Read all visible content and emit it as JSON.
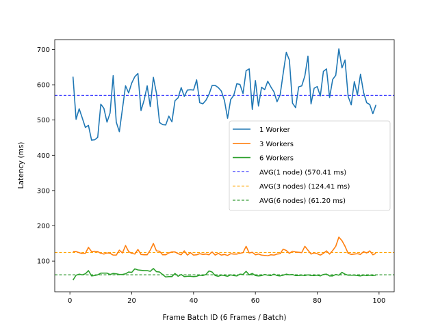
{
  "chart_data": {
    "type": "line",
    "title": "",
    "xlabel": "Frame Batch ID (6 Frames / Batch)",
    "ylabel": "Latency (ms)",
    "xlim": [
      -4.9,
      104.9
    ],
    "ylim": [
      13,
      728
    ],
    "xticks": [
      0,
      20,
      40,
      60,
      80,
      100
    ],
    "yticks": [
      100,
      200,
      300,
      400,
      500,
      600,
      700
    ],
    "grid": false,
    "legend_position": "center-right",
    "series": [
      {
        "name": "1 Worker",
        "color": "#1f77b4",
        "style": "solid",
        "x": [
          1,
          2,
          3,
          4,
          5,
          6,
          7,
          8,
          9,
          10,
          11,
          12,
          13,
          14,
          15,
          16,
          17,
          18,
          19,
          20,
          21,
          22,
          23,
          24,
          25,
          26,
          27,
          28,
          29,
          30,
          31,
          32,
          33,
          34,
          35,
          36,
          37,
          38,
          39,
          40,
          41,
          42,
          43,
          44,
          45,
          46,
          47,
          48,
          49,
          50,
          51,
          52,
          53,
          54,
          55,
          56,
          57,
          58,
          59,
          60,
          61,
          62,
          63,
          64,
          65,
          66,
          67,
          68,
          69,
          70,
          71,
          72,
          73,
          74,
          75,
          76,
          77,
          78,
          79,
          80,
          81,
          82,
          83,
          84,
          85,
          86,
          87,
          88,
          89,
          90,
          91,
          92,
          93,
          94,
          95,
          96,
          97,
          98,
          99
        ],
        "values": [
          623,
          502,
          532,
          506,
          479,
          485,
          443,
          444,
          451,
          545,
          533,
          494,
          520,
          626,
          494,
          467,
          532,
          597,
          577,
          605,
          623,
          632,
          527,
          556,
          597,
          538,
          621,
          576,
          493,
          487,
          486,
          511,
          495,
          555,
          563,
          592,
          567,
          585,
          586,
          585,
          614,
          549,
          546,
          556,
          573,
          598,
          598,
          592,
          582,
          555,
          505,
          558,
          570,
          603,
          601,
          575,
          640,
          645,
          530,
          612,
          540,
          593,
          586,
          610,
          594,
          580,
          552,
          571,
          633,
          692,
          670,
          548,
          535,
          594,
          597,
          625,
          681,
          546,
          590,
          595,
          568,
          638,
          645,
          564,
          615,
          627,
          702,
          648,
          670,
          567,
          543,
          609,
          571,
          630,
          578,
          549,
          544,
          518,
          543
        ]
      },
      {
        "name": "3 Workers",
        "color": "#ff7f0e",
        "style": "solid",
        "x": [
          1,
          2,
          3,
          4,
          5,
          6,
          7,
          8,
          9,
          10,
          11,
          12,
          13,
          14,
          15,
          16,
          17,
          18,
          19,
          20,
          21,
          22,
          23,
          24,
          25,
          26,
          27,
          28,
          29,
          30,
          31,
          32,
          33,
          34,
          35,
          36,
          37,
          38,
          39,
          40,
          41,
          42,
          43,
          44,
          45,
          46,
          47,
          48,
          49,
          50,
          51,
          52,
          53,
          54,
          55,
          56,
          57,
          58,
          59,
          60,
          61,
          62,
          63,
          64,
          65,
          66,
          67,
          68,
          69,
          70,
          71,
          72,
          73,
          74,
          75,
          76,
          77,
          78,
          79,
          80,
          81,
          82,
          83,
          84,
          85,
          86,
          87,
          88,
          89,
          90,
          91,
          92,
          93,
          94,
          95,
          96,
          97,
          98,
          99
        ],
        "values": [
          127,
          127,
          124,
          121,
          122,
          139,
          127,
          128,
          127,
          122,
          120,
          123,
          122,
          117,
          117,
          131,
          123,
          144,
          127,
          122,
          120,
          133,
          119,
          118,
          118,
          131,
          150,
          129,
          128,
          118,
          118,
          123,
          126,
          126,
          121,
          118,
          129,
          117,
          124,
          117,
          118,
          121,
          119,
          120,
          118,
          126,
          117,
          122,
          117,
          119,
          116,
          121,
          120,
          120,
          122,
          124,
          142,
          123,
          125,
          118,
          120,
          117,
          116,
          115,
          118,
          117,
          120,
          121,
          134,
          130,
          122,
          128,
          126,
          125,
          124,
          142,
          131,
          120,
          123,
          121,
          117,
          122,
          129,
          120,
          130,
          142,
          168,
          158,
          142,
          122,
          119,
          120,
          121,
          119,
          127,
          123,
          129,
          118,
          122
        ]
      },
      {
        "name": "6 Workers",
        "color": "#2ca02c",
        "style": "solid",
        "x": [
          1,
          2,
          3,
          4,
          5,
          6,
          7,
          8,
          9,
          10,
          11,
          12,
          13,
          14,
          15,
          16,
          17,
          18,
          19,
          20,
          21,
          22,
          23,
          24,
          25,
          26,
          27,
          28,
          29,
          30,
          31,
          32,
          33,
          34,
          35,
          36,
          37,
          38,
          39,
          40,
          41,
          42,
          43,
          44,
          45,
          46,
          47,
          48,
          49,
          50,
          51,
          52,
          53,
          54,
          55,
          56,
          57,
          58,
          59,
          60,
          61,
          62,
          63,
          64,
          65,
          66,
          67,
          68,
          69,
          70,
          71,
          72,
          73,
          74,
          75,
          76,
          77,
          78,
          79,
          80,
          81,
          82,
          83,
          84,
          85,
          86,
          87,
          88,
          89,
          90,
          91,
          92,
          93,
          94,
          95,
          96,
          97,
          98,
          99
        ],
        "values": [
          46,
          60,
          63,
          61,
          64,
          73,
          58,
          59,
          61,
          66,
          66,
          66,
          62,
          65,
          64,
          62,
          62,
          64,
          69,
          68,
          78,
          75,
          74,
          73,
          73,
          71,
          79,
          70,
          69,
          62,
          55,
          56,
          56,
          65,
          57,
          62,
          56,
          57,
          57,
          56,
          57,
          60,
          59,
          62,
          72,
          69,
          59,
          57,
          60,
          59,
          57,
          61,
          59,
          58,
          63,
          62,
          71,
          61,
          65,
          59,
          58,
          59,
          62,
          60,
          59,
          63,
          59,
          58,
          60,
          63,
          61,
          62,
          59,
          59,
          60,
          59,
          61,
          59,
          59,
          60,
          58,
          62,
          63,
          58,
          58,
          62,
          60,
          68,
          63,
          60,
          60,
          60,
          59,
          58,
          60,
          59,
          60,
          59,
          60
        ]
      },
      {
        "name": "AVG(1 node) (570.41 ms)",
        "color": "#0000ff",
        "style": "dashed",
        "value": 570.41
      },
      {
        "name": "AVG(3 nodes) (124.41 ms)",
        "color": "#ffa500",
        "style": "dashed",
        "value": 124.41
      },
      {
        "name": "AVG(6 nodes) (61.20 ms)",
        "color": "#008000",
        "style": "dashed",
        "value": 61.2
      }
    ]
  }
}
